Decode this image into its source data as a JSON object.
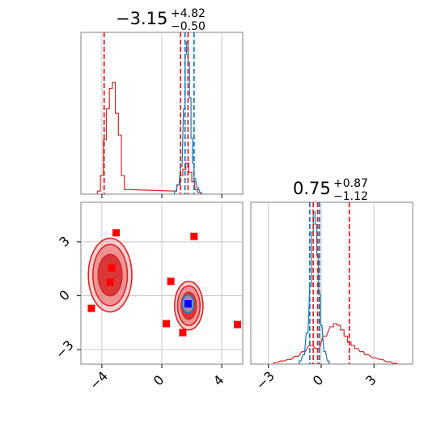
{
  "colors": {
    "red": "#d62728",
    "blue": "#1f77b4",
    "marker_red": "#ff0000",
    "marker_blue": "#0000ff",
    "frame": "#808080",
    "grid": "#c8c8c8"
  },
  "titles": {
    "p1": {
      "value": "−3.15",
      "plus": "+4.82",
      "minus": "−0.50"
    },
    "p2": {
      "value": "0.75",
      "plus": "+0.87",
      "minus": "−1.12"
    }
  },
  "chart_data": [
    {
      "type": "histogram",
      "panel": "top-left marginal",
      "xlim": [
        -5.4,
        5.4
      ],
      "grid": true,
      "vlines": [
        {
          "x": -3.85,
          "color": "red",
          "style": "dashed"
        },
        {
          "x": 1.25,
          "color": "red",
          "style": "dashed"
        },
        {
          "x": 1.75,
          "color": "red",
          "style": "dashed"
        },
        {
          "x": 1.55,
          "color": "blue",
          "style": "dashed"
        },
        {
          "x": 2.15,
          "color": "blue",
          "style": "dashed"
        }
      ],
      "series": [
        {
          "color": "red",
          "x": [
            -4.2,
            -4.0,
            -3.8,
            -3.6,
            -3.4,
            -3.2,
            -3.0,
            -2.8,
            -2.6,
            -2.4,
            0.9,
            1.1,
            1.3,
            1.5,
            1.7,
            1.9,
            2.1,
            2.3,
            2.5
          ],
          "y": [
            0.02,
            0.12,
            0.35,
            0.55,
            0.68,
            0.72,
            0.52,
            0.38,
            0.12,
            0.03,
            0.02,
            0.06,
            0.12,
            0.16,
            0.2,
            0.14,
            0.08,
            0.03,
            0.01
          ]
        },
        {
          "color": "blue",
          "x": [
            0.9,
            1.1,
            1.3,
            1.5,
            1.6,
            1.7,
            1.8,
            1.9,
            2.0,
            2.1,
            2.2,
            2.4,
            2.6
          ],
          "y": [
            0.02,
            0.06,
            0.18,
            0.55,
            0.9,
            0.98,
            0.85,
            0.62,
            0.36,
            0.2,
            0.1,
            0.04,
            0.01
          ]
        }
      ]
    },
    {
      "type": "scatter",
      "panel": "bottom-left joint",
      "xlim": [
        -5.4,
        5.4
      ],
      "ylim": [
        -3.8,
        5.2
      ],
      "x_ticks": [
        -4,
        0,
        4
      ],
      "x_tick_labels": [
        "−4",
        "0",
        "4"
      ],
      "y_ticks": [
        -3,
        0,
        3
      ],
      "y_tick_labels": [
        "−3",
        "0",
        "3"
      ],
      "grid": true,
      "contours": [
        {
          "color": "red",
          "cx": -3.45,
          "cy": 1.15,
          "rx": [
            1.45,
            1.15,
            0.8
          ],
          "ry": [
            2.05,
            1.7,
            1.15
          ]
        },
        {
          "color": "red",
          "cx": 1.8,
          "cy": -0.55,
          "rx": [
            0.95,
            0.75,
            0.5
          ],
          "ry": [
            1.35,
            1.1,
            0.75
          ]
        },
        {
          "color": "blue",
          "cx": 1.75,
          "cy": -0.45,
          "rx": [
            0.4
          ],
          "ry": [
            0.5
          ]
        }
      ],
      "markers_red": [
        {
          "x": -3.05,
          "y": 3.5
        },
        {
          "x": 2.15,
          "y": 3.3
        },
        {
          "x": -3.35,
          "y": 1.55
        },
        {
          "x": -3.45,
          "y": 0.75
        },
        {
          "x": 0.6,
          "y": 0.8
        },
        {
          "x": -4.7,
          "y": -0.7
        },
        {
          "x": 0.3,
          "y": -1.55
        },
        {
          "x": 1.4,
          "y": -2.05
        },
        {
          "x": 5.05,
          "y": -1.6
        }
      ],
      "markers_blue": [
        {
          "x": 1.75,
          "y": -0.45
        }
      ]
    },
    {
      "type": "histogram",
      "panel": "bottom-right marginal",
      "xlim": [
        -4.0,
        5.2
      ],
      "x_ticks": [
        -3,
        0,
        3
      ],
      "x_tick_labels": [
        "−3",
        "0",
        "3"
      ],
      "grid": true,
      "vlines": [
        {
          "x": -0.45,
          "color": "red",
          "style": "dashed"
        },
        {
          "x": -0.2,
          "color": "red",
          "style": "dashed"
        },
        {
          "x": 1.6,
          "color": "red",
          "style": "dashed"
        },
        {
          "x": -0.65,
          "color": "blue",
          "style": "dashed"
        },
        {
          "x": -0.1,
          "color": "blue",
          "style": "dashed"
        }
      ],
      "series": [
        {
          "color": "red",
          "x": [
            -2.6,
            -2.2,
            -1.8,
            -1.4,
            -1.0,
            -0.6,
            -0.2,
            0.2,
            0.6,
            0.8,
            1.0,
            1.2,
            1.4,
            1.6,
            1.8,
            2.0,
            2.3,
            2.6,
            3.0,
            3.4,
            3.8,
            4.2
          ],
          "y": [
            0.01,
            0.02,
            0.03,
            0.05,
            0.08,
            0.12,
            0.1,
            0.18,
            0.24,
            0.26,
            0.25,
            0.22,
            0.18,
            0.14,
            0.12,
            0.1,
            0.08,
            0.06,
            0.04,
            0.03,
            0.015,
            0.005
          ]
        },
        {
          "color": "blue",
          "x": [
            -1.2,
            -1.0,
            -0.8,
            -0.6,
            -0.5,
            -0.4,
            -0.3,
            -0.2,
            -0.1,
            0.0,
            0.2,
            0.4
          ],
          "y": [
            0.02,
            0.06,
            0.2,
            0.5,
            0.85,
            0.98,
            0.9,
            0.7,
            0.45,
            0.25,
            0.08,
            0.02
          ]
        }
      ]
    }
  ]
}
